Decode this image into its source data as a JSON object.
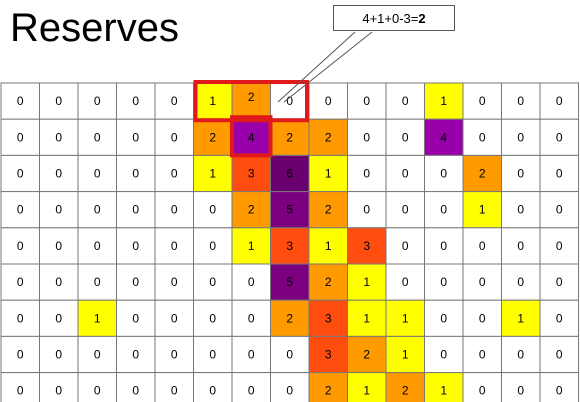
{
  "title": "Reserves",
  "callout": {
    "formula": "4+1+0-3=",
    "result": "2"
  },
  "highlight_value": "2",
  "colors": {
    "0": "#ffffff",
    "1": "#ffff00",
    "2": "#ff9a00",
    "3": "#ff4c0f",
    "4": "#9900aa",
    "5": "#7a007f",
    "6": "#6a0070",
    "highlight": "#e01a1a"
  },
  "grid": [
    [
      0,
      0,
      0,
      0,
      0,
      1,
      2,
      0,
      0,
      0,
      0,
      1,
      0,
      0,
      0
    ],
    [
      0,
      0,
      0,
      0,
      0,
      2,
      4,
      2,
      2,
      0,
      0,
      4,
      0,
      0,
      0
    ],
    [
      0,
      0,
      0,
      0,
      0,
      1,
      3,
      6,
      1,
      0,
      0,
      0,
      2,
      0,
      0
    ],
    [
      0,
      0,
      0,
      0,
      0,
      0,
      2,
      5,
      2,
      0,
      0,
      0,
      1,
      0,
      0
    ],
    [
      0,
      0,
      0,
      0,
      0,
      0,
      1,
      3,
      1,
      3,
      0,
      0,
      0,
      0,
      0
    ],
    [
      0,
      0,
      0,
      0,
      0,
      0,
      0,
      5,
      2,
      1,
      0,
      0,
      0,
      0,
      0
    ],
    [
      0,
      0,
      1,
      0,
      0,
      0,
      0,
      2,
      3,
      1,
      1,
      0,
      0,
      1,
      0
    ],
    [
      0,
      0,
      0,
      0,
      0,
      0,
      0,
      0,
      3,
      2,
      1,
      0,
      0,
      0,
      0
    ],
    [
      0,
      0,
      0,
      0,
      0,
      0,
      0,
      0,
      2,
      1,
      2,
      1,
      0,
      0,
      0
    ]
  ]
}
